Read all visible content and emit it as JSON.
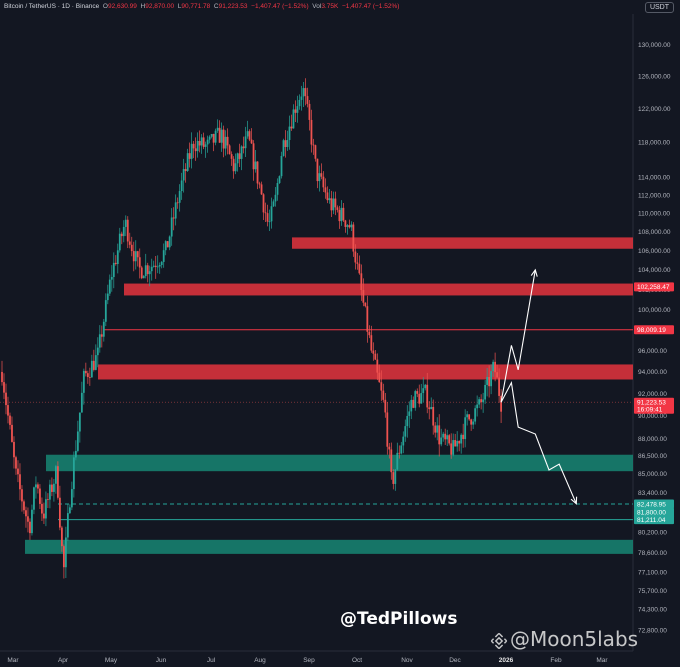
{
  "header": {
    "symbol": "Bitcoin / TetherUS · 1D · Binance",
    "o_label": "O",
    "o_value": "92,630.99",
    "h_label": "H",
    "h_value": "92,870.00",
    "l_label": "L",
    "l_value": "90,771.78",
    "c_label": "C",
    "c_value": "91,223.53",
    "change": "−1,407.47 (−1.52%)",
    "vol_label": "Vol",
    "vol_value": "3.75K",
    "vol_change": "−1,407.47 (−1.52%)"
  },
  "currency_button": "USDT",
  "watermarks": {
    "author": "@TedPillows",
    "brand": "@Moon5labs"
  },
  "colors": {
    "background": "#131722",
    "up": "#26a69a",
    "down": "#ef5350",
    "resistance_zone": "#d9323c",
    "support_zone": "#177e6e",
    "resistance_line": "#f23645",
    "support_line": "#26a69a"
  },
  "chart_data": {
    "type": "candlestick",
    "symbol": "BTCUSDT",
    "timeframe": "1D",
    "y_scale": "log",
    "ylim": [
      71300,
      134000
    ],
    "y_ticks": [
      "130,000.00",
      "126,000.00",
      "122,000.00",
      "118,000.00",
      "114,000.00",
      "112,000.00",
      "110,000.00",
      "108,000.00",
      "106,000.00",
      "104,000.00",
      "102,000.00",
      "100,000.00",
      "98,000.00",
      "96,000.00",
      "94,000.00",
      "92,000.00",
      "90,000.00",
      "88,000.00",
      "86,500.00",
      "85,000.00",
      "83,400.00",
      "82,000.00",
      "80,200.00",
      "78,600.00",
      "77,100.00",
      "75,700.00",
      "74,300.00",
      "72,800.00"
    ],
    "x_labels": [
      "Mar",
      "Apr",
      "May",
      "Jun",
      "Jul",
      "Aug",
      "Sep",
      "Oct",
      "Nov",
      "Dec",
      "2026",
      "Feb",
      "Mar"
    ],
    "bold_x_labels": [
      "2026"
    ],
    "price_path": [
      [
        0,
        94000
      ],
      [
        2,
        85000
      ],
      [
        4,
        80500
      ],
      [
        5,
        84500
      ],
      [
        6,
        81500
      ],
      [
        8,
        85200
      ],
      [
        9,
        77000
      ],
      [
        10,
        83500
      ],
      [
        12,
        93500
      ],
      [
        14,
        95500
      ],
      [
        16,
        103500
      ],
      [
        18,
        109000
      ],
      [
        20,
        104000
      ],
      [
        22,
        104500
      ],
      [
        24,
        106000
      ],
      [
        26,
        112500
      ],
      [
        28,
        118000
      ],
      [
        30,
        117500
      ],
      [
        32,
        119000
      ],
      [
        34,
        115000
      ],
      [
        36,
        118500
      ],
      [
        38,
        112000
      ],
      [
        39,
        108500
      ],
      [
        40,
        111500
      ],
      [
        41,
        117500
      ],
      [
        43,
        122500
      ],
      [
        44,
        124500
      ],
      [
        45,
        120000
      ],
      [
        46,
        114500
      ],
      [
        48,
        111000
      ],
      [
        50,
        109500
      ],
      [
        51,
        108500
      ],
      [
        52,
        104000
      ],
      [
        54,
        96000
      ],
      [
        56,
        90500
      ],
      [
        57,
        84000
      ],
      [
        58,
        86800
      ],
      [
        60,
        91500
      ],
      [
        62,
        92000
      ],
      [
        64,
        88000
      ],
      [
        66,
        87000
      ],
      [
        68,
        89500
      ],
      [
        70,
        91000
      ],
      [
        72,
        94500
      ],
      [
        73,
        91223.53
      ]
    ],
    "resistance_zones": [
      [
        106200,
        107400
      ],
      [
        101400,
        102600
      ],
      [
        93300,
        94700
      ]
    ],
    "support_zones": [
      [
        85200,
        86600
      ],
      [
        78500,
        79600
      ]
    ],
    "levels": [
      {
        "value": 98009.19,
        "label": "98,009.19",
        "style": "solid",
        "color": "red"
      },
      {
        "value": 82478.95,
        "label": "82,478.95",
        "style": "dashed",
        "color": "teal"
      },
      {
        "value": 81211.04,
        "label": "81,211.04",
        "style": "solid",
        "color": "teal"
      }
    ],
    "price_labels": [
      {
        "value": 102258.47,
        "label": "102,258.47",
        "color": "red"
      },
      {
        "value": 91223.53,
        "label": "91,223.53",
        "sub": "16:09:41",
        "color": "red"
      },
      {
        "value": 81800.0,
        "label": "81,800.00",
        "color": "teal"
      }
    ],
    "current_price": 91223.53,
    "scenario_bullish": [
      [
        73,
        91223.53
      ],
      [
        74.5,
        96500
      ],
      [
        75.5,
        94200
      ],
      [
        78,
        104000
      ]
    ],
    "scenario_bearish": [
      [
        73,
        91223.53
      ],
      [
        74.5,
        93000
      ],
      [
        75.5,
        89000
      ],
      [
        78,
        88400
      ],
      [
        80,
        85300
      ],
      [
        81.5,
        85800
      ],
      [
        84,
        82500
      ]
    ],
    "x_domain": [
      0,
      92
    ]
  }
}
